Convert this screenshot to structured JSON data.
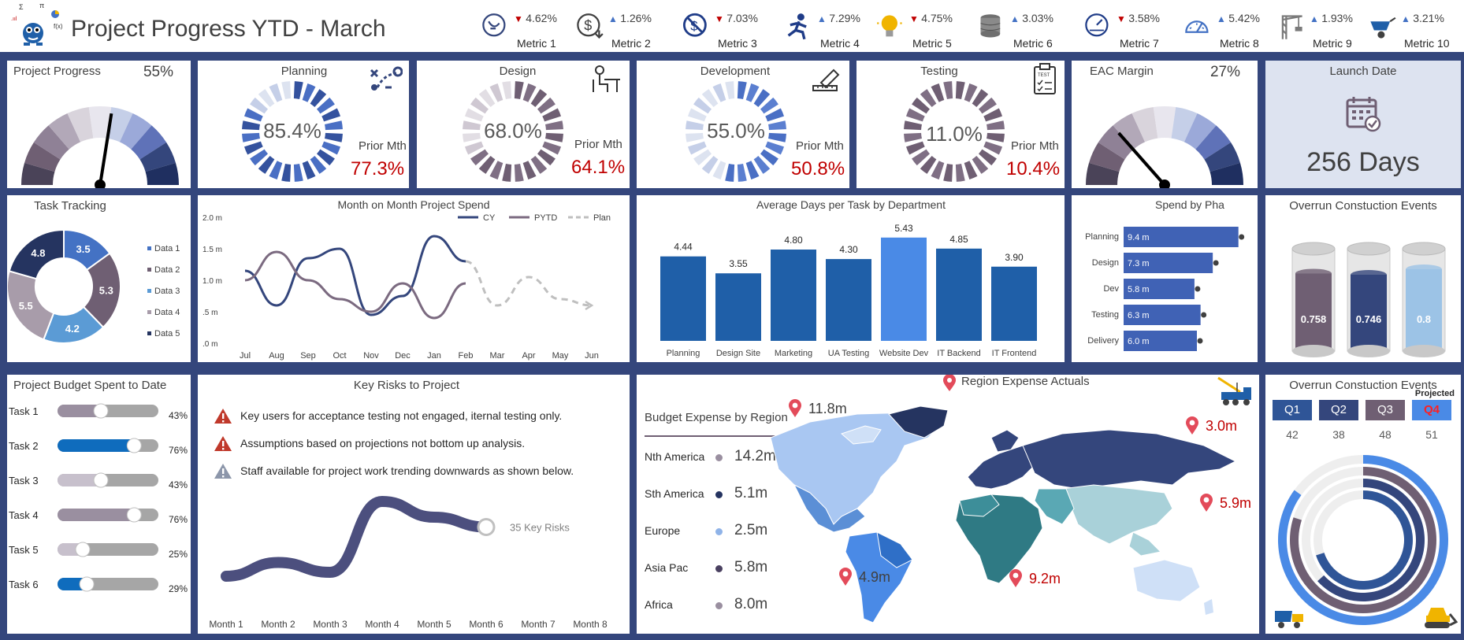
{
  "header": {
    "title": "Project Progress YTD - March",
    "metrics": [
      {
        "value": "4.62%",
        "dir": "down",
        "label": "Metric 1",
        "icon": "route-icon"
      },
      {
        "value": "1.26%",
        "dir": "up",
        "label": "Metric 2",
        "icon": "dollar-down-icon"
      },
      {
        "value": "7.03%",
        "dir": "down",
        "label": "Metric 3",
        "icon": "no-dollar-icon"
      },
      {
        "value": "7.29%",
        "dir": "up",
        "label": "Metric 4",
        "icon": "runner-icon"
      },
      {
        "value": "4.75%",
        "dir": "down",
        "label": "Metric 5",
        "icon": "lightbulb-icon"
      },
      {
        "value": "3.03%",
        "dir": "up",
        "label": "Metric 6",
        "icon": "coins-icon"
      },
      {
        "value": "3.58%",
        "dir": "down",
        "label": "Metric 7",
        "icon": "speedometer-icon"
      },
      {
        "value": "5.42%",
        "dir": "up",
        "label": "Metric 8",
        "icon": "gauge-icon"
      },
      {
        "value": "1.93%",
        "dir": "up",
        "label": "Metric 9",
        "icon": "crane-icon"
      },
      {
        "value": "3.21%",
        "dir": "up",
        "label": "Metric 10",
        "icon": "wheelbarrow-icon"
      }
    ]
  },
  "row1": {
    "project_progress": {
      "title": "Project Progress",
      "pct": "55%",
      "value": 0.55
    },
    "planning": {
      "title": "Planning",
      "value": "85.4%",
      "fraction": 0.854,
      "prior_label": "Prior Mth",
      "prior": "77.3%"
    },
    "design": {
      "title": "Design",
      "value": "68.0%",
      "fraction": 0.68,
      "prior_label": "Prior Mth",
      "prior": "64.1%"
    },
    "development": {
      "title": "Development",
      "value": "55.0%",
      "fraction": 0.55,
      "prior_label": "Prior Mth",
      "prior": "50.8%"
    },
    "testing": {
      "title": "Testing",
      "value": "11.0%",
      "fraction": 0.11,
      "prior_label": "Prior Mth",
      "prior": "10.4%"
    },
    "eac_margin": {
      "title": "EAC Margin",
      "pct": "27%",
      "value": 0.27
    },
    "launch": {
      "title": "Launch Date",
      "value": "256 Days"
    }
  },
  "task_tracking": {
    "title": "Task Tracking",
    "items": [
      {
        "name": "Data 1",
        "value": 3.5,
        "label": "3.5",
        "color": "#4472c4"
      },
      {
        "name": "Data 2",
        "value": 5.3,
        "label": "5.3",
        "color": "#6f5f73"
      },
      {
        "name": "Data 3",
        "value": 4.2,
        "label": "4.2",
        "color": "#5b9bd5"
      },
      {
        "name": "Data 4",
        "value": 5.5,
        "label": "5.5",
        "color": "#a89caa"
      },
      {
        "name": "Data 5",
        "value": 4.8,
        "label": "4.8",
        "color": "#253460"
      }
    ]
  },
  "chart_data": [
    {
      "type": "line",
      "title": "Month on Month Project Spend",
      "categories": [
        "Jul",
        "Aug",
        "Sep",
        "Oct",
        "Nov",
        "Dec",
        "Jan",
        "Feb",
        "Mar",
        "Apr",
        "May",
        "Jun"
      ],
      "y_ticks": [
        "2.0 m",
        "1.5 m",
        "1.0 m",
        ".5 m",
        ".0 m"
      ],
      "ylim": [
        0,
        2.0
      ],
      "series": [
        {
          "name": "CY",
          "color": "#34467c",
          "values": [
            1.15,
            0.6,
            1.35,
            1.5,
            0.45,
            0.75,
            1.7,
            1.3,
            null,
            null,
            null,
            null
          ]
        },
        {
          "name": "PYTD",
          "color": "#7b6a80",
          "values": [
            1.0,
            1.45,
            1.0,
            0.7,
            0.5,
            0.95,
            0.4,
            0.95,
            null,
            null,
            null,
            null
          ]
        },
        {
          "name": "Plan",
          "color": "#bfbfbf",
          "dashed": true,
          "values": [
            null,
            null,
            null,
            null,
            null,
            null,
            null,
            1.3,
            0.6,
            1.05,
            0.7,
            0.6
          ]
        }
      ]
    },
    {
      "type": "bar",
      "title": "Average Days per Task by Department",
      "categories": [
        "Planning",
        "Design Site",
        "Marketing",
        "UA Testing",
        "Website Dev",
        "IT Backend",
        "IT Frontend"
      ],
      "values": [
        4.44,
        3.55,
        4.8,
        4.3,
        5.43,
        4.85,
        3.9
      ],
      "labels": [
        "4.44",
        "3.55",
        "4.80",
        "4.30",
        "5.43",
        "4.85",
        "3.90"
      ],
      "colors": [
        "#1f5fa8",
        "#1f5fa8",
        "#1f5fa8",
        "#1f5fa8",
        "#4a8ae6",
        "#1f5fa8",
        "#1f5fa8"
      ],
      "ylim": [
        0,
        6
      ]
    },
    {
      "type": "bar",
      "title": "Spend by Pha",
      "categories": [
        "Planning",
        "Design",
        "Dev",
        "Testing",
        "Delivery"
      ],
      "values": [
        9.4,
        7.3,
        5.8,
        6.3,
        6.0
      ],
      "labels": [
        "9.4 m",
        "7.3 m",
        "5.8 m",
        "6.3 m",
        "6.0 m"
      ],
      "xlim": [
        0,
        10
      ]
    },
    {
      "type": "area",
      "title": "Key Risks to Project",
      "categories": [
        "Month 1",
        "Month 2",
        "Month 3",
        "Month 4",
        "Month 5",
        "Month 6",
        "Month 7",
        "Month 8"
      ],
      "values": [
        10,
        17,
        12,
        48,
        40,
        35,
        null,
        null
      ],
      "end_label": "35 Key Risks",
      "ylim": [
        0,
        60
      ]
    }
  ],
  "overrun1": {
    "title": "Overrun Constuction Events",
    "cylinders": [
      {
        "label": "0.758",
        "value": 0.758,
        "color": "#6f5f73"
      },
      {
        "label": "0.746",
        "value": 0.746,
        "color": "#34467c"
      },
      {
        "label": "0.8",
        "value": 0.8,
        "color": "#9cc3e6"
      }
    ]
  },
  "budget": {
    "title": "Project Budget Spent to Date",
    "tasks": [
      {
        "name": "Task 1",
        "pct": "43%",
        "value": 0.43,
        "color": "#9a8fa0"
      },
      {
        "name": "Task 2",
        "pct": "76%",
        "value": 0.76,
        "color": "#0f6cbd"
      },
      {
        "name": "Task 3",
        "pct": "43%",
        "value": 0.43,
        "color": "#c7c0cc"
      },
      {
        "name": "Task 4",
        "pct": "76%",
        "value": 0.76,
        "color": "#9a8fa0"
      },
      {
        "name": "Task 5",
        "pct": "25%",
        "value": 0.25,
        "color": "#c7c0cc"
      },
      {
        "name": "Task 6",
        "pct": "29%",
        "value": 0.29,
        "color": "#0f6cbd"
      }
    ]
  },
  "risks": {
    "title": "Key Risks to Project",
    "items": [
      {
        "text": "Key users for acceptance testing not engaged, iternal testing only.",
        "color": "#c0392b"
      },
      {
        "text": "Assumptions based on projections not bottom up analysis.",
        "color": "#c0392b"
      },
      {
        "text": "Staff available for project work trending downwards as shown below.",
        "color": "#8c96aa"
      }
    ]
  },
  "region": {
    "title": "Region Expense Actuals",
    "subtitle": "Budget Expense by Region",
    "rows": [
      {
        "name": "Nth America",
        "value": "14.2m",
        "color": "#9a8fa0"
      },
      {
        "name": "Sth America",
        "value": "5.1m",
        "color": "#253460"
      },
      {
        "name": "Europe",
        "value": "2.5m",
        "color": "#8fb3e8"
      },
      {
        "name": "Asia Pac",
        "value": "5.8m",
        "color": "#4a4060"
      },
      {
        "name": "Africa",
        "value": "8.0m",
        "color": "#9a8fa0"
      }
    ],
    "pins": [
      "11.8m",
      "3.0m",
      "5.9m",
      "4.9m",
      "9.2m"
    ]
  },
  "overrun2": {
    "title": "Overrun Constuction Events",
    "projected": "Projected",
    "quarters": [
      {
        "label": "Q1",
        "value": "42",
        "num": 42,
        "color": "#2f5597",
        "text_color": "#ffffff"
      },
      {
        "label": "Q2",
        "value": "38",
        "num": 38,
        "color": "#34467c",
        "text_color": "#ffffff"
      },
      {
        "label": "Q3",
        "value": "48",
        "num": 48,
        "color": "#6f5f73",
        "text_color": "#ffffff"
      },
      {
        "label": "Q4",
        "value": "51",
        "num": 51,
        "color": "#4a8ae6",
        "text_color": "#ff2020"
      }
    ]
  }
}
